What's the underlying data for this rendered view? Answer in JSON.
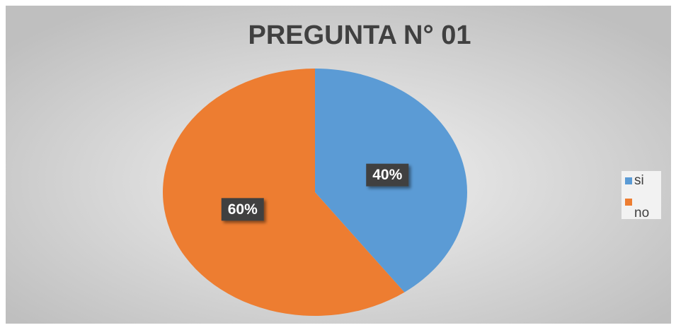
{
  "chart_data": {
    "type": "pie",
    "title": "PREGUNTA N° 01",
    "categories": [
      "si",
      "no"
    ],
    "values": [
      40,
      60
    ],
    "value_labels": [
      "40%",
      "60%"
    ],
    "colors": [
      "#5b9bd5",
      "#ed7d31"
    ],
    "legend": "right"
  }
}
